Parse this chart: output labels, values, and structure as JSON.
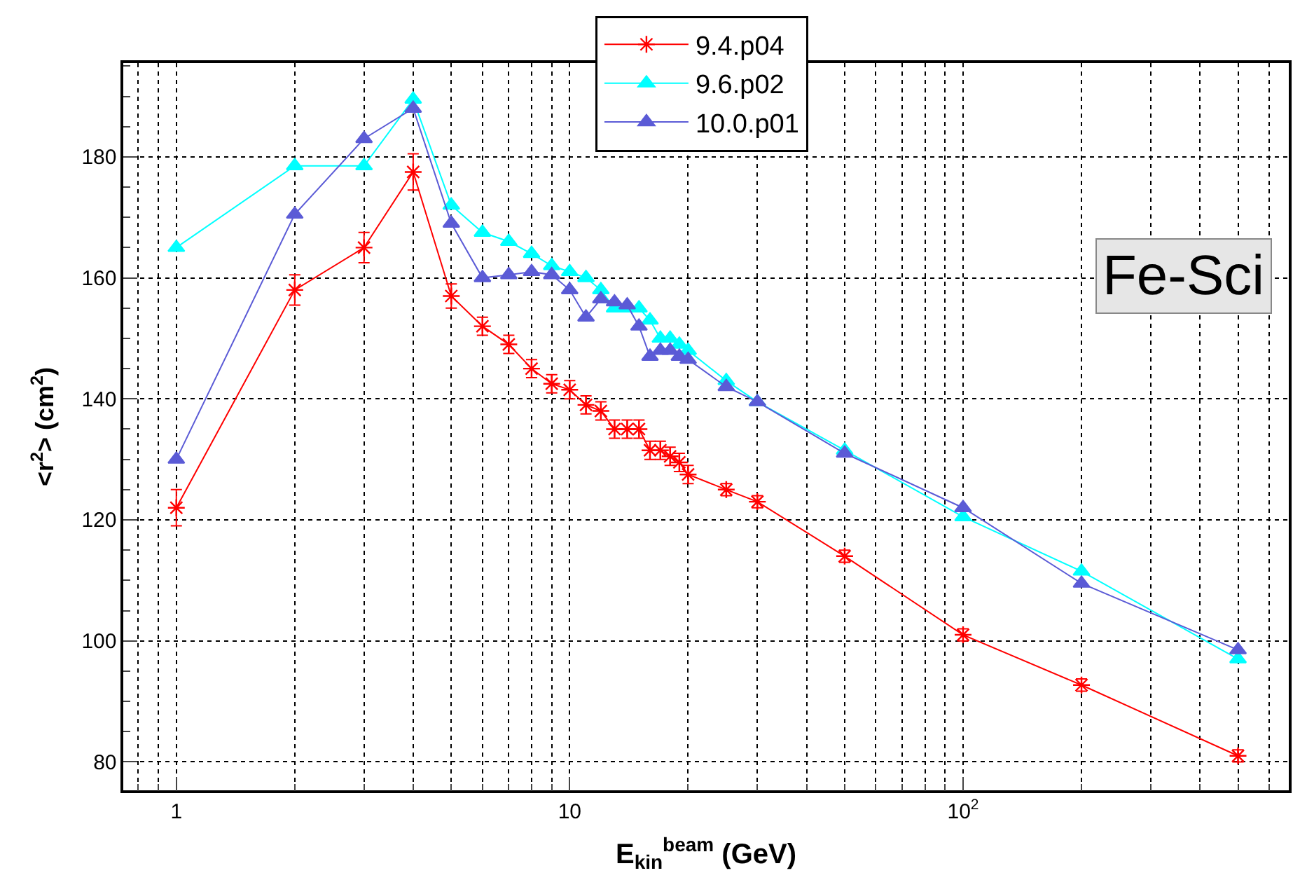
{
  "chart_data": {
    "type": "line",
    "xlabel": "E$_{kin}$$^{beam}$ (GeV)",
    "ylabel": "<r$^{2}$> (cm$^{2}$)",
    "x": [
      1,
      2,
      3,
      4,
      5,
      6,
      7,
      8,
      9,
      10,
      11,
      12,
      13,
      14,
      15,
      16,
      17,
      18,
      19,
      20,
      25,
      30,
      50,
      100,
      200,
      500
    ],
    "log": "x",
    "xlim": [
      0.733,
      673
    ],
    "xticks": [
      1,
      10,
      {
        "value": 100,
        "label": "10$^{2}$"
      }
    ],
    "ylim": [
      75.3,
      195.5
    ],
    "yticks": [
      80,
      100,
      120,
      140,
      160,
      180
    ],
    "grid": true,
    "legend": "top",
    "line_style": "solid",
    "annotations": [
      "Fe-Sci"
    ],
    "series": [
      {
        "name": "9.4.p04",
        "color": "#ff0000",
        "marker": "cross",
        "values": [
          122,
          158,
          165,
          177.5,
          157,
          152,
          149,
          145,
          142.5,
          141.5,
          139,
          138,
          135,
          135,
          135,
          131.5,
          131.5,
          130.5,
          129.5,
          127.5,
          125,
          123,
          114,
          101,
          92.7,
          81
        ],
        "errors": [
          3,
          2.5,
          2.5,
          3,
          2,
          1.5,
          1.5,
          1.5,
          1.5,
          1.5,
          1.5,
          1.5,
          1.5,
          1.5,
          1.5,
          1.5,
          1.5,
          1.5,
          1.5,
          1.5,
          1,
          1,
          1,
          1,
          1,
          1
        ]
      },
      {
        "name": "9.6.p02",
        "color": "#00ffff",
        "marker": "triangle",
        "values": [
          165,
          178.5,
          178.5,
          189.5,
          172,
          167.5,
          166,
          164,
          162,
          161,
          160,
          158,
          155,
          155,
          155,
          153,
          150,
          150,
          149,
          148,
          143,
          139.5,
          131.5,
          120.5,
          111.5,
          97
        ]
      },
      {
        "name": "10.0.p01",
        "color": "#5b5bd6",
        "marker": "triangle",
        "values": [
          130,
          170.5,
          183,
          188,
          169,
          160,
          160.5,
          161,
          160.5,
          158,
          153.5,
          156.5,
          156,
          155.5,
          152,
          147,
          148,
          148,
          147,
          146.5,
          142,
          139.5,
          131,
          122,
          109.5,
          98.5
        ]
      }
    ]
  }
}
